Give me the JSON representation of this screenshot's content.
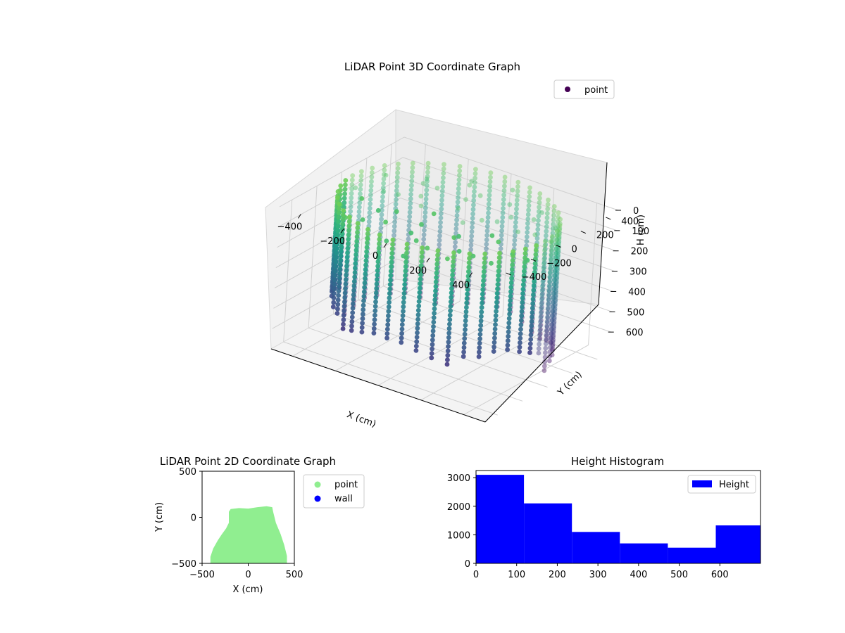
{
  "chart_data": [
    {
      "type": "scatter",
      "projection": "3d",
      "title": "LiDAR Point 3D Coordinate Graph",
      "xlabel": "X (cm)",
      "ylabel": "Y (cm)",
      "zlabel": "H (cm)",
      "xlim": [
        -500,
        500
      ],
      "ylim": [
        -500,
        500
      ],
      "zlim": [
        0,
        700
      ],
      "z_inverted": true,
      "xticks": [
        "−400",
        "−200",
        "0",
        "200",
        "400"
      ],
      "yticks": [
        "−400",
        "−200",
        "0",
        "200",
        "400"
      ],
      "zticks": [
        "0",
        "100",
        "200",
        "300",
        "400",
        "500",
        "600"
      ],
      "colormap": "viridis",
      "legend": {
        "position": "top-right",
        "entries": [
          {
            "label": "point",
            "color": "#440154"
          }
        ]
      },
      "series": [
        {
          "name": "point",
          "shape": "cylindrical scan of a shaft wall, radius ≈ 450 cm, heights 0–700 cm, colored by height",
          "points_xyh": [
            [
              -450,
              0,
              50
            ],
            [
              -450,
              0,
              150
            ],
            [
              -450,
              0,
              250
            ],
            [
              -450,
              0,
              350
            ],
            [
              -450,
              0,
              450
            ],
            [
              -450,
              0,
              550
            ],
            [
              0,
              450,
              50
            ],
            [
              0,
              450,
              150
            ],
            [
              0,
              450,
              250
            ],
            [
              0,
              450,
              350
            ],
            [
              0,
              450,
              450
            ],
            [
              0,
              450,
              550
            ],
            [
              0,
              450,
              650
            ],
            [
              450,
              0,
              50
            ],
            [
              450,
              0,
              150
            ],
            [
              450,
              0,
              250
            ],
            [
              450,
              0,
              350
            ],
            [
              450,
              0,
              450
            ],
            [
              450,
              0,
              550
            ],
            [
              450,
              0,
              650
            ],
            [
              0,
              -450,
              50
            ],
            [
              0,
              -450,
              150
            ],
            [
              0,
              -450,
              250
            ],
            [
              0,
              -450,
              350
            ],
            [
              0,
              -450,
              450
            ]
          ]
        }
      ]
    },
    {
      "type": "scatter",
      "title": "LiDAR Point 2D Coordinate Graph",
      "xlabel": "X (cm)",
      "ylabel": "Y (cm)",
      "xlim": [
        -500,
        500
      ],
      "ylim": [
        -500,
        500
      ],
      "xticks": [
        "−500",
        "0",
        "500"
      ],
      "yticks": [
        "−500",
        "0",
        "500"
      ],
      "legend": {
        "position": "outside-right",
        "entries": [
          {
            "label": "point",
            "color": "#90ee90"
          },
          {
            "label": "wall",
            "color": "#0000ff"
          }
        ]
      },
      "series": [
        {
          "name": "point",
          "color": "#90ee90",
          "outline_xy": [
            [
              -410,
              -500
            ],
            [
              -410,
              -430
            ],
            [
              -380,
              -340
            ],
            [
              -330,
              -250
            ],
            [
              -290,
              -190
            ],
            [
              -240,
              -120
            ],
            [
              -210,
              -60
            ],
            [
              -210,
              60
            ],
            [
              -190,
              90
            ],
            [
              -100,
              100
            ],
            [
              0,
              95
            ],
            [
              100,
              110
            ],
            [
              200,
              120
            ],
            [
              260,
              110
            ],
            [
              270,
              60
            ],
            [
              300,
              -60
            ],
            [
              350,
              -180
            ],
            [
              390,
              -300
            ],
            [
              420,
              -420
            ],
            [
              420,
              -500
            ]
          ]
        },
        {
          "name": "wall",
          "color": "#0000ff",
          "points_xy": []
        }
      ]
    },
    {
      "type": "histogram",
      "title": "Height Histogram",
      "xlim": [
        0,
        700
      ],
      "ylim": [
        0,
        3250
      ],
      "xticks": [
        "0",
        "100",
        "200",
        "300",
        "400",
        "500",
        "600"
      ],
      "yticks": [
        "0",
        "1000",
        "2000",
        "3000"
      ],
      "legend": {
        "position": "top-right",
        "entries": [
          {
            "label": "Height",
            "color": "#0000ff"
          }
        ]
      },
      "series": [
        {
          "name": "Height",
          "color": "#0000ff",
          "bin_edges": [
            0,
            118,
            236,
            354,
            472,
            590,
            700
          ],
          "counts": [
            3100,
            2100,
            1100,
            700,
            550,
            1330
          ]
        }
      ]
    }
  ]
}
